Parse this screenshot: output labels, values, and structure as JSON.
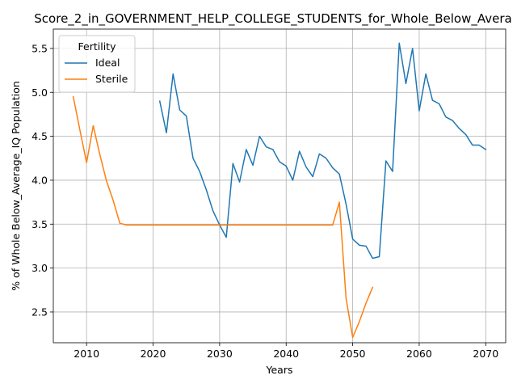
{
  "chart_data": {
    "type": "line",
    "title": "Score_2_in_GOVERNMENT_HELP_COLLEGE_STUDENTS_for_Whole_Below_Avera",
    "xlabel": "Years",
    "ylabel": "% of Whole Below_Average_IQ Population",
    "xlim": [
      2005,
      2073
    ],
    "ylim": [
      2.15,
      5.72
    ],
    "xticks": [
      2010,
      2020,
      2030,
      2040,
      2050,
      2060,
      2070
    ],
    "yticks": [
      2.5,
      3.0,
      3.5,
      4.0,
      4.5,
      5.0,
      5.5
    ],
    "xtick_labels": [
      "2010",
      "2020",
      "2030",
      "2040",
      "2050",
      "2060",
      "2070"
    ],
    "ytick_labels": [
      "2.5",
      "3.0",
      "3.5",
      "4.0",
      "4.5",
      "5.0",
      "5.5"
    ],
    "grid": true,
    "legend": {
      "title": "Fertility",
      "position": "upper-left"
    },
    "series": [
      {
        "name": "Ideal",
        "color": "#1f77b4",
        "x": [
          2021,
          2022,
          2023,
          2024,
          2025,
          2026,
          2027,
          2028,
          2029,
          2030,
          2031,
          2032,
          2033,
          2034,
          2035,
          2036,
          2037,
          2038,
          2039,
          2040,
          2041,
          2042,
          2043,
          2044,
          2045,
          2046,
          2047,
          2048,
          2049,
          2050,
          2051,
          2052,
          2053,
          2054,
          2055,
          2056,
          2057,
          2058,
          2059,
          2060,
          2061,
          2062,
          2063,
          2064,
          2065,
          2066,
          2067,
          2068,
          2069,
          2070
        ],
        "y": [
          4.9,
          4.54,
          5.21,
          4.8,
          4.73,
          4.25,
          4.1,
          3.89,
          3.65,
          3.49,
          3.35,
          4.19,
          3.98,
          4.35,
          4.17,
          4.5,
          4.38,
          4.35,
          4.21,
          4.16,
          4.0,
          4.33,
          4.15,
          4.04,
          4.3,
          4.25,
          4.14,
          4.07,
          3.73,
          3.33,
          3.26,
          3.25,
          3.11,
          3.13,
          4.22,
          4.1,
          5.56,
          5.1,
          5.5,
          4.79,
          5.21,
          4.91,
          4.87,
          4.72,
          4.68,
          4.59,
          4.52,
          4.4,
          4.4,
          4.35
        ]
      },
      {
        "name": "Sterile",
        "color": "#ff7f0e",
        "x": [
          2008,
          2009,
          2010,
          2011,
          2012,
          2013,
          2014,
          2015,
          2016,
          2017,
          2018,
          2019,
          2020,
          2021,
          2022,
          2023,
          2024,
          2025,
          2026,
          2027,
          2028,
          2029,
          2030,
          2031,
          2032,
          2033,
          2034,
          2035,
          2036,
          2037,
          2038,
          2039,
          2040,
          2041,
          2042,
          2043,
          2044,
          2045,
          2046,
          2047,
          2048,
          2049,
          2050,
          2051,
          2052,
          2053
        ],
        "y": [
          4.95,
          4.57,
          4.2,
          4.62,
          4.29,
          3.99,
          3.77,
          3.51,
          3.49,
          3.49,
          3.49,
          3.49,
          3.49,
          3.49,
          3.49,
          3.49,
          3.49,
          3.49,
          3.49,
          3.49,
          3.49,
          3.49,
          3.49,
          3.49,
          3.49,
          3.49,
          3.49,
          3.49,
          3.49,
          3.49,
          3.49,
          3.49,
          3.49,
          3.49,
          3.49,
          3.49,
          3.49,
          3.49,
          3.49,
          3.49,
          3.75,
          2.66,
          2.21,
          2.39,
          2.6,
          2.78
        ]
      }
    ]
  }
}
